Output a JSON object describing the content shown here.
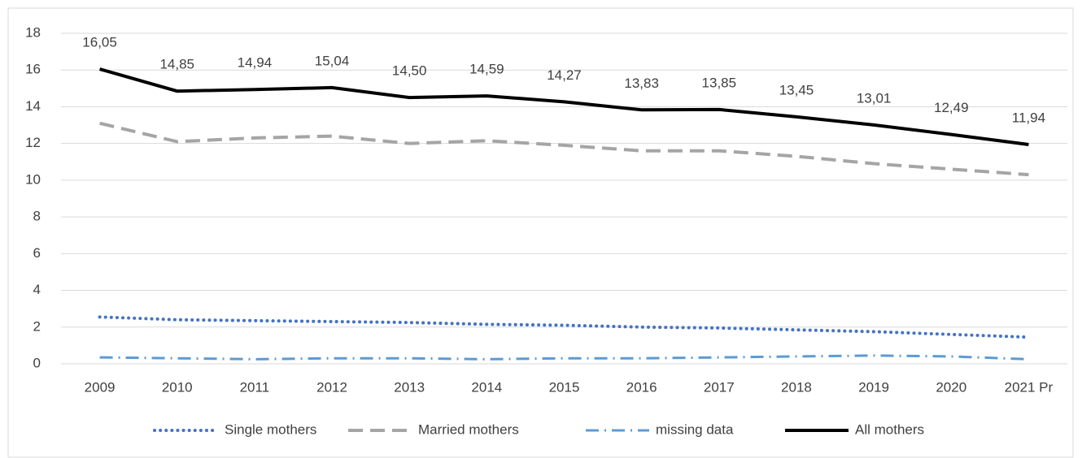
{
  "chart_data": {
    "type": "line",
    "categories": [
      "2009",
      "2010",
      "2011",
      "2012",
      "2013",
      "2014",
      "2015",
      "2016",
      "2017",
      "2018",
      "2019",
      "2020",
      "2021 Pr"
    ],
    "series": [
      {
        "name": "Single mothers",
        "color": "#4472c4",
        "line_style": "dotted",
        "values": [
          2.55,
          2.4,
          2.35,
          2.3,
          2.25,
          2.15,
          2.1,
          2.0,
          1.95,
          1.85,
          1.75,
          1.6,
          1.45
        ]
      },
      {
        "name": "Married mothers",
        "color": "#a5a5a5",
        "line_style": "dashed",
        "values": [
          13.1,
          12.1,
          12.3,
          12.4,
          12.0,
          12.15,
          11.9,
          11.6,
          11.6,
          11.3,
          10.9,
          10.6,
          10.3
        ]
      },
      {
        "name": "missing data",
        "color": "#5b9bd5",
        "line_style": "dashdot",
        "values": [
          0.35,
          0.3,
          0.25,
          0.3,
          0.3,
          0.25,
          0.3,
          0.3,
          0.35,
          0.4,
          0.45,
          0.4,
          0.25
        ]
      },
      {
        "name": "All mothers",
        "color": "#000000",
        "line_style": "solid",
        "values": [
          16.05,
          14.85,
          14.94,
          15.04,
          14.5,
          14.59,
          14.27,
          13.83,
          13.85,
          13.45,
          13.01,
          12.49,
          11.94
        ],
        "value_labels": [
          "16,05",
          "14,85",
          "14,94",
          "15,04",
          "14,50",
          "14,59",
          "14,27",
          "13,83",
          "13,85",
          "13,45",
          "13,01",
          "12,49",
          "11,94"
        ]
      }
    ],
    "ylim": [
      0,
      18
    ],
    "yticks": [
      0,
      2,
      4,
      6,
      8,
      10,
      12,
      14,
      16,
      18
    ],
    "grid": true,
    "legend": "bottom"
  }
}
